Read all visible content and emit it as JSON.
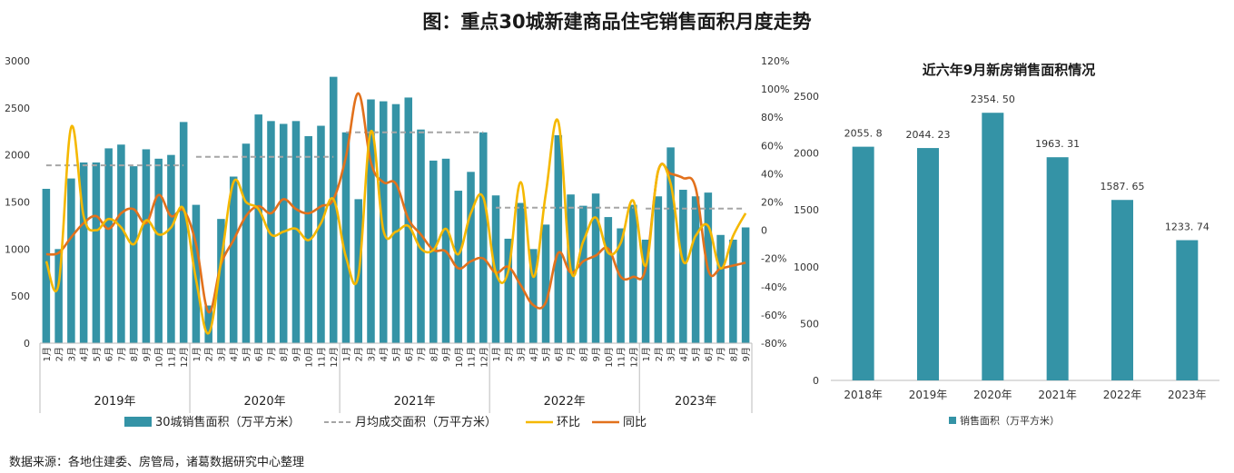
{
  "title": "图：重点30城新建商品住宅销售面积月度走势",
  "source_note": "数据来源：各地住建委、房管局，诸葛数据研究中心整理",
  "colors": {
    "bar": "#3493a6",
    "avg": "#a6a6a6",
    "mom": "#f5b800",
    "yoy": "#e2711c"
  },
  "chart_data": [
    {
      "type": "bar+line",
      "title": "",
      "ylim": [
        0,
        3000
      ],
      "y_ticks": [
        "0",
        "500",
        "1000",
        "1500",
        "2000",
        "2500",
        "3000"
      ],
      "y2lim": [
        -80,
        120
      ],
      "y2_ticks": [
        "-80%",
        "-60%",
        "-40%",
        "-20%",
        "0",
        "20%",
        "40%",
        "60%",
        "80%",
        "100%",
        "120%"
      ],
      "month_labels": [
        "1月",
        "2月",
        "3月",
        "4月",
        "5月",
        "6月",
        "7月",
        "8月",
        "9月",
        "10月",
        "11月",
        "12月"
      ],
      "years": [
        "2019年",
        "2020年",
        "2021年",
        "2022年",
        "2023年"
      ],
      "legend": [
        "30城销售面积（万平方米）",
        "月均成交面积（万平方米）",
        "环比",
        "同比"
      ],
      "series": [
        {
          "name": "30城销售面积（万平方米）",
          "values": [
            1640,
            1000,
            1750,
            1920,
            1920,
            2070,
            2110,
            1880,
            2060,
            1960,
            2000,
            2350,
            1470,
            400,
            1320,
            1770,
            2120,
            2430,
            2360,
            2330,
            2360,
            2200,
            2310,
            2830,
            2240,
            1530,
            2590,
            2570,
            2540,
            2610,
            2270,
            1940,
            1960,
            1620,
            1820,
            2240,
            1570,
            1110,
            1490,
            1000,
            1260,
            2210,
            1580,
            1460,
            1590,
            1340,
            1220,
            1470,
            1100,
            1560,
            2080,
            1630,
            1560,
            1600,
            1150,
            1100,
            1230
          ]
        },
        {
          "name": "月均成交面积（万平方米）",
          "values": [
            1890,
            1890,
            1890,
            1890,
            1890,
            1890,
            1890,
            1890,
            1890,
            1890,
            1890,
            1890,
            1980,
            1980,
            1980,
            1980,
            1980,
            1980,
            1980,
            1980,
            1980,
            1980,
            1980,
            1980,
            2240,
            2240,
            2240,
            2240,
            2240,
            2240,
            2240,
            2240,
            2240,
            2240,
            2240,
            2240,
            1440,
            1440,
            1440,
            1440,
            1440,
            1440,
            1440,
            1440,
            1440,
            1440,
            1440,
            1440,
            1430,
            1430,
            1430,
            1430,
            1430,
            1430,
            1430,
            1430,
            1430
          ]
        },
        {
          "name": "环比",
          "values": [
            -22,
            -38,
            73,
            10,
            0,
            8,
            2,
            -10,
            7,
            -3,
            2,
            15,
            -35,
            -73,
            -22,
            34,
            20,
            15,
            -3,
            -1,
            1,
            -7,
            5,
            22,
            -19,
            -32,
            70,
            0,
            -1,
            3,
            -13,
            -14,
            1,
            -17,
            12,
            23,
            -30,
            -29,
            34,
            -33,
            26,
            77,
            -28,
            -8,
            9,
            -16,
            -9,
            21,
            -25,
            42,
            33,
            -22,
            -4,
            3,
            -27,
            -4,
            12
          ]
        },
        {
          "name": "同比",
          "values": [
            -17,
            -16,
            -5,
            5,
            10,
            1,
            12,
            15,
            5,
            25,
            10,
            14,
            -10,
            -58,
            -24,
            -7,
            10,
            17,
            12,
            22,
            15,
            12,
            17,
            22,
            52,
            97,
            48,
            34,
            33,
            8,
            -3,
            -14,
            -15,
            -27,
            -22,
            -20,
            -30,
            -26,
            -39,
            -53,
            -51,
            -16,
            -30,
            -22,
            -18,
            -13,
            -33,
            -33,
            -27,
            42,
            40,
            37,
            30,
            -28,
            -27,
            -25,
            -23
          ]
        }
      ]
    },
    {
      "type": "bar",
      "title": "近六年9月新房销售面积情况",
      "categories": [
        "2018年",
        "2019年",
        "2020年",
        "2021年",
        "2022年",
        "2023年"
      ],
      "values": [
        2055.8,
        2044.23,
        2354.5,
        1963.31,
        1587.65,
        1233.74
      ],
      "value_labels": [
        "2055. 8",
        "2044. 23",
        "2354. 50",
        "1963. 31",
        "1587. 65",
        "1233. 74"
      ],
      "ylim": [
        0,
        2500
      ],
      "y_ticks": [
        "0",
        "500",
        "1000",
        "1500",
        "2000",
        "2500"
      ],
      "legend": "销售面积（万平方米）"
    }
  ]
}
